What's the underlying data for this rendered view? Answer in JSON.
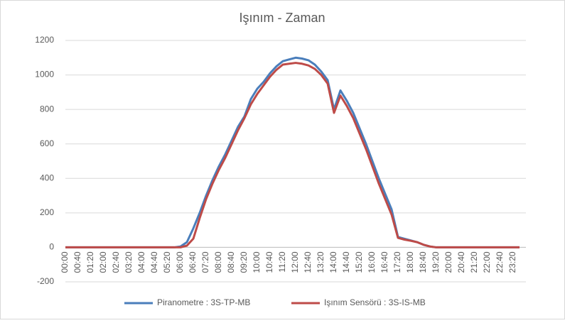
{
  "chart_data": {
    "type": "line",
    "title": "Işınım - Zaman",
    "categories": [
      "00:00",
      null,
      "00:40",
      null,
      "01:20",
      null,
      "02:00",
      null,
      "02:40",
      null,
      "03:20",
      null,
      "04:00",
      null,
      "04:40",
      null,
      "05:20",
      null,
      "06:00",
      null,
      "06:40",
      null,
      "07:20",
      null,
      "08:00",
      null,
      "08:40",
      null,
      "09:20",
      null,
      "10:00",
      null,
      "10:40",
      null,
      "11:20",
      null,
      "12:00",
      null,
      "12:40",
      null,
      "13:20",
      null,
      "14:00",
      null,
      "14:40",
      null,
      "15:20",
      null,
      "16:00",
      null,
      "16:40",
      null,
      "17:20",
      null,
      "18:00",
      null,
      "18:40",
      null,
      "19:20",
      null,
      "20:00",
      null,
      "20:40",
      null,
      "21:20",
      null,
      "22:00",
      null,
      "22:40",
      null,
      "23:20",
      null
    ],
    "series": [
      {
        "name": "Piranometre : 3S-TP-MB",
        "color": "#4a7ebb",
        "values": [
          0,
          0,
          0,
          0,
          0,
          0,
          0,
          0,
          0,
          0,
          0,
          0,
          0,
          0,
          0,
          0,
          0,
          0,
          5,
          30,
          110,
          200,
          300,
          390,
          470,
          540,
          620,
          700,
          760,
          860,
          920,
          960,
          1010,
          1050,
          1080,
          1090,
          1100,
          1095,
          1085,
          1060,
          1020,
          970,
          800,
          910,
          850,
          780,
          690,
          600,
          500,
          400,
          310,
          220,
          60,
          50,
          40,
          30,
          15,
          5,
          0,
          0,
          0,
          0,
          0,
          0,
          0,
          0,
          0,
          0,
          0,
          0,
          0,
          0
        ]
      },
      {
        "name": "Işınım Sensörü : 3S-IS-MB",
        "color": "#be4b48",
        "values": [
          0,
          0,
          0,
          0,
          0,
          0,
          0,
          0,
          0,
          0,
          0,
          0,
          0,
          0,
          0,
          0,
          0,
          0,
          0,
          10,
          50,
          170,
          280,
          370,
          450,
          520,
          600,
          680,
          750,
          830,
          890,
          940,
          990,
          1030,
          1060,
          1065,
          1070,
          1065,
          1055,
          1035,
          1000,
          950,
          780,
          880,
          820,
          750,
          660,
          570,
          470,
          370,
          280,
          190,
          55,
          45,
          38,
          30,
          15,
          5,
          0,
          0,
          0,
          0,
          0,
          0,
          0,
          0,
          0,
          0,
          0,
          0,
          0,
          0
        ]
      }
    ],
    "ylim": [
      -200,
      1200
    ],
    "yticks": [
      -200,
      0,
      200,
      400,
      600,
      800,
      1000,
      1200
    ],
    "grid": true,
    "legend": "bottom"
  }
}
